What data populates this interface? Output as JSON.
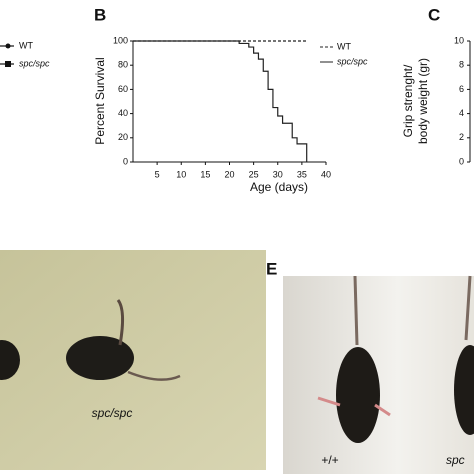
{
  "chart_data": {
    "type": "line",
    "step": true,
    "xlabel": "Age (days)",
    "ylabel": "Percent Survival",
    "x": [
      0,
      22,
      24,
      25,
      26,
      27,
      28,
      29,
      30,
      31,
      33,
      34,
      36
    ],
    "series": [
      {
        "name": "WT",
        "color": "#222222",
        "dash": true,
        "values": [
          100,
          100,
          100,
          100,
          100,
          100,
          100,
          100,
          100,
          100,
          100,
          100,
          100
        ]
      },
      {
        "name": "spc/spc",
        "color": "#222222",
        "dash": false,
        "values": [
          100,
          98,
          95,
          90,
          85,
          75,
          60,
          45,
          38,
          32,
          20,
          15,
          0
        ]
      }
    ],
    "xlim": [
      0,
      40
    ],
    "xticks": [
      5,
      10,
      15,
      20,
      25,
      30,
      35,
      40
    ],
    "ylim": [
      0,
      100
    ],
    "yticks": [
      0,
      20,
      40,
      60,
      80,
      100
    ]
  },
  "panels": {
    "b": "B",
    "c": "C",
    "e": "E"
  },
  "left_legend": [
    "WT",
    "spc/spc"
  ],
  "panel_c": {
    "ylabel_lines": [
      "Grip strenght/",
      "body weight (gr)"
    ],
    "yticks": [
      0,
      2,
      4,
      6,
      8,
      10
    ]
  },
  "photos": {
    "d_label": "spc/spc",
    "e_labels": [
      "+/+",
      "spc"
    ]
  }
}
